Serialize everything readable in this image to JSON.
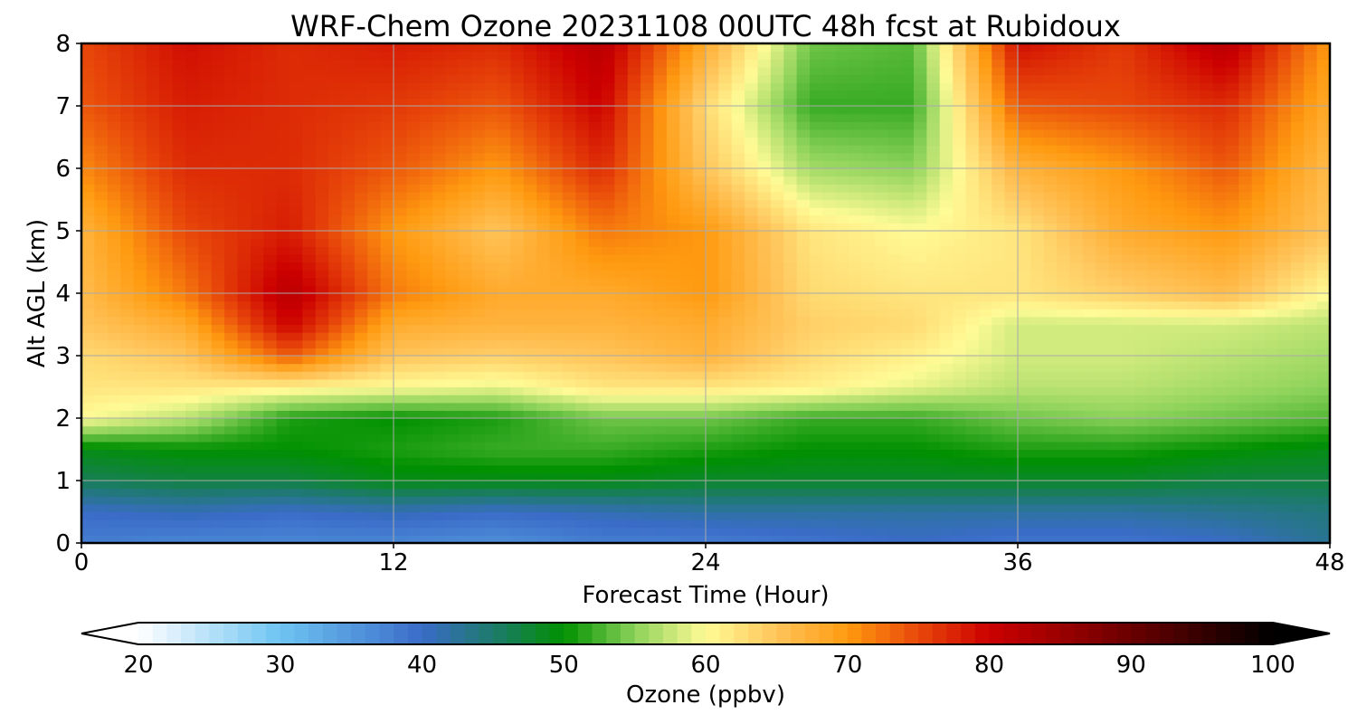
{
  "chart_data": {
    "type": "heatmap",
    "title": "WRF-Chem Ozone  20231108 00UTC 48h fcst at Rubidoux",
    "xlabel": "Forecast Time (Hour)",
    "ylabel": "Alt AGL (km)",
    "xlim": [
      0,
      48
    ],
    "ylim": [
      0,
      8
    ],
    "x_ticks": [
      0,
      12,
      24,
      36,
      48
    ],
    "y_ticks": [
      0,
      1,
      2,
      3,
      4,
      5,
      6,
      7,
      8
    ],
    "grid": true,
    "colorbar": {
      "label": "Ozone  (ppbv)",
      "orientation": "horizontal",
      "placement": "bottom",
      "range": [
        20,
        100
      ],
      "ticks": [
        20,
        30,
        40,
        50,
        60,
        70,
        80,
        90,
        100
      ],
      "extend": "both",
      "color_stops": [
        {
          "value": 20,
          "color": "#ffffff"
        },
        {
          "value": 30,
          "color": "#6ec4f2"
        },
        {
          "value": 40,
          "color": "#3a6cc8"
        },
        {
          "value": 45,
          "color": "#1d7a6c"
        },
        {
          "value": 50,
          "color": "#009000"
        },
        {
          "value": 55,
          "color": "#8cd25a"
        },
        {
          "value": 60,
          "color": "#fffb96"
        },
        {
          "value": 65,
          "color": "#ffc45a"
        },
        {
          "value": 70,
          "color": "#ff9a10"
        },
        {
          "value": 75,
          "color": "#e8480a"
        },
        {
          "value": 80,
          "color": "#cc0000"
        },
        {
          "value": 90,
          "color": "#6a0000"
        },
        {
          "value": 100,
          "color": "#000000"
        }
      ],
      "under_color": "#ffffff",
      "over_color": "#000000"
    },
    "x": [
      0,
      4,
      8,
      12,
      16,
      20,
      24,
      28,
      32,
      36,
      40,
      44,
      48
    ],
    "y": [
      0,
      0.5,
      1,
      1.5,
      2,
      2.5,
      3,
      3.5,
      4,
      5,
      6,
      7,
      8
    ],
    "z": [
      [
        38,
        37,
        37,
        37,
        36,
        38,
        38,
        39,
        40,
        39,
        39,
        40,
        43
      ],
      [
        40,
        41,
        40,
        41,
        40,
        41,
        42,
        42,
        42,
        42,
        42,
        43,
        44
      ],
      [
        46,
        47,
        47,
        49,
        49,
        49,
        48,
        48,
        48,
        48,
        48,
        47,
        47
      ],
      [
        49,
        50,
        50,
        51,
        52,
        52,
        51,
        50,
        50,
        51,
        51,
        50,
        49
      ],
      [
        60,
        57,
        51,
        50,
        51,
        54,
        54,
        52,
        52,
        54,
        55,
        54,
        53
      ],
      [
        62,
        62,
        61,
        60,
        59,
        62,
        62,
        61,
        59,
        57,
        57,
        56,
        55
      ],
      [
        63,
        65,
        74,
        65,
        64,
        65,
        67,
        63,
        61,
        58,
        58,
        57,
        56
      ],
      [
        65,
        68,
        80,
        68,
        67,
        67,
        68,
        64,
        63,
        58,
        58,
        58,
        57
      ],
      [
        66,
        72,
        82,
        72,
        68,
        68,
        70,
        63,
        62,
        62,
        64,
        66,
        60
      ],
      [
        67,
        75,
        78,
        70,
        65,
        72,
        70,
        62,
        60,
        62,
        68,
        70,
        65
      ],
      [
        71,
        77,
        77,
        74,
        70,
        77,
        65,
        56,
        55,
        67,
        70,
        74,
        66
      ],
      [
        74,
        78,
        77,
        76,
        74,
        80,
        63,
        52,
        52,
        74,
        75,
        77,
        68
      ],
      [
        75,
        79,
        77,
        78,
        77,
        82,
        68,
        54,
        53,
        79,
        76,
        82,
        70
      ]
    ]
  }
}
